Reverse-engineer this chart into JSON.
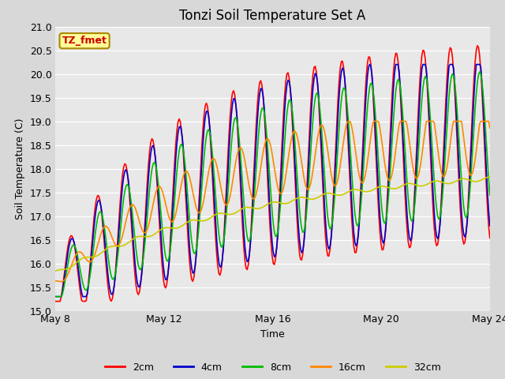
{
  "title": "Tonzi Soil Temperature Set A",
  "xlabel": "Time",
  "ylabel": "Soil Temperature (C)",
  "ylim": [
    15.0,
    21.0
  ],
  "yticks": [
    15.0,
    15.5,
    16.0,
    16.5,
    17.0,
    17.5,
    18.0,
    18.5,
    19.0,
    19.5,
    20.0,
    20.5,
    21.0
  ],
  "xtick_labels": [
    "May 8",
    "May 12",
    "May 16",
    "May 20",
    "May 24"
  ],
  "xtick_positions": [
    0,
    4,
    8,
    12,
    16
  ],
  "legend_labels": [
    "2cm",
    "4cm",
    "8cm",
    "16cm",
    "32cm"
  ],
  "legend_colors": [
    "#ff0000",
    "#0000cc",
    "#00bb00",
    "#ff8800",
    "#cccc00"
  ],
  "annotation_text": "TZ_fmet",
  "annotation_color": "#cc0000",
  "annotation_bg": "#ffff99",
  "annotation_border": "#aa8800",
  "plot_bg_color": "#e8e8e8",
  "title_fontsize": 12,
  "axis_fontsize": 9,
  "tick_fontsize": 9
}
